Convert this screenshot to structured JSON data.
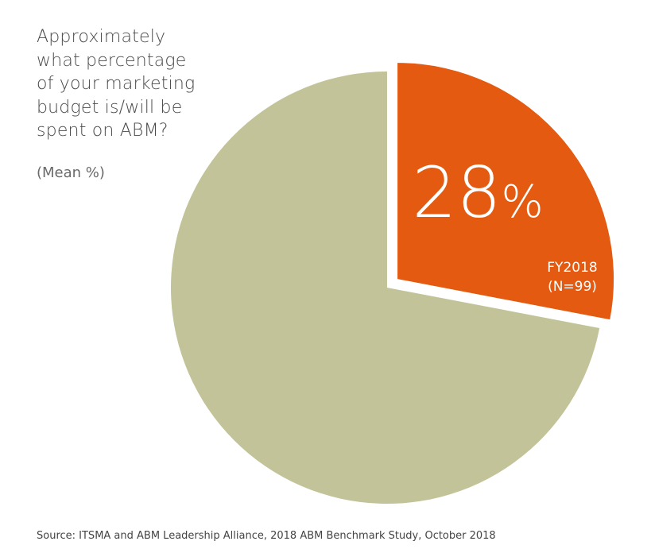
{
  "question_lines": [
    "Approximately",
    "what percentage",
    "of your marketing",
    "budget is/will be",
    "spent on ABM?"
  ],
  "measure_label": "(Mean %)",
  "source": "Source: ITSMA and ABM Leadership Alliance, 2018 ABM Benchmark Study, October 2018",
  "colors": {
    "highlight": "#e35a10",
    "remainder": "#c2c398"
  },
  "chart_data": {
    "type": "pie",
    "title": "Approximately what percentage of your marketing budget is/will be spent on ABM?",
    "measure": "(Mean %)",
    "slices": [
      {
        "value": 28,
        "value_label": "28%",
        "label_lines": [
          "FY2018",
          "(N=99)"
        ],
        "exploded": true,
        "color": "#e35a10"
      },
      {
        "value": 72,
        "value_label": "",
        "label_lines": [],
        "exploded": false,
        "color": "#c2c398"
      }
    ],
    "start_angle_deg": 0,
    "direction": "clockwise"
  }
}
